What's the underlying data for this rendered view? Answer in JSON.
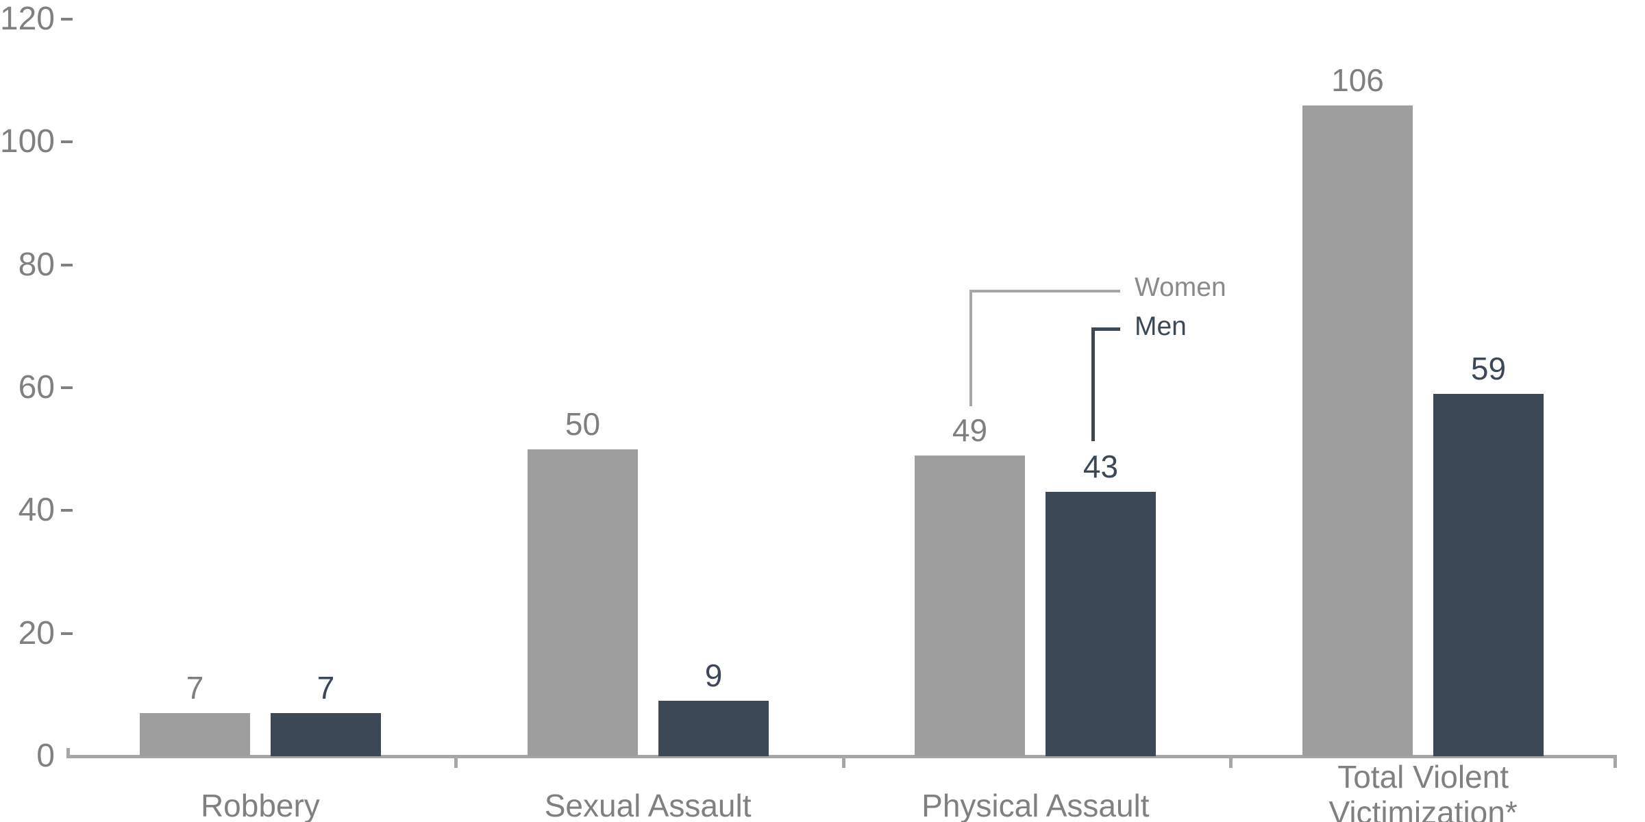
{
  "chart_data": {
    "type": "bar",
    "title": "",
    "xlabel": "",
    "ylabel": "",
    "categories": [
      "Robbery",
      "Sexual Assault",
      "Physical Assault",
      "Total Violent Victimization*"
    ],
    "series": [
      {
        "name": "Women",
        "values": [
          7,
          50,
          49,
          106
        ]
      },
      {
        "name": "Men",
        "values": [
          7,
          9,
          43,
          59
        ]
      }
    ],
    "yticks": [
      120,
      100,
      80,
      60,
      40,
      20,
      0
    ],
    "ylim": [
      0,
      120
    ],
    "grid": false,
    "value_labels_shown": true,
    "legend_position": "callout-lines-above-physical-assault-bars"
  },
  "colors": {
    "background": "#ffffff",
    "women_bar": "#9e9e9e",
    "men_bar": "#3d4857",
    "women_value_label": "#7f7f7f",
    "men_value_label": "#3d4857",
    "women_legend_text": "#8a8a8a",
    "men_legend_text": "#3d4857",
    "axis_text": "#808080",
    "axis_line": "#a6a6a6",
    "women_callout_line": "#a6a6a6",
    "men_callout_line": "#3d4857"
  }
}
